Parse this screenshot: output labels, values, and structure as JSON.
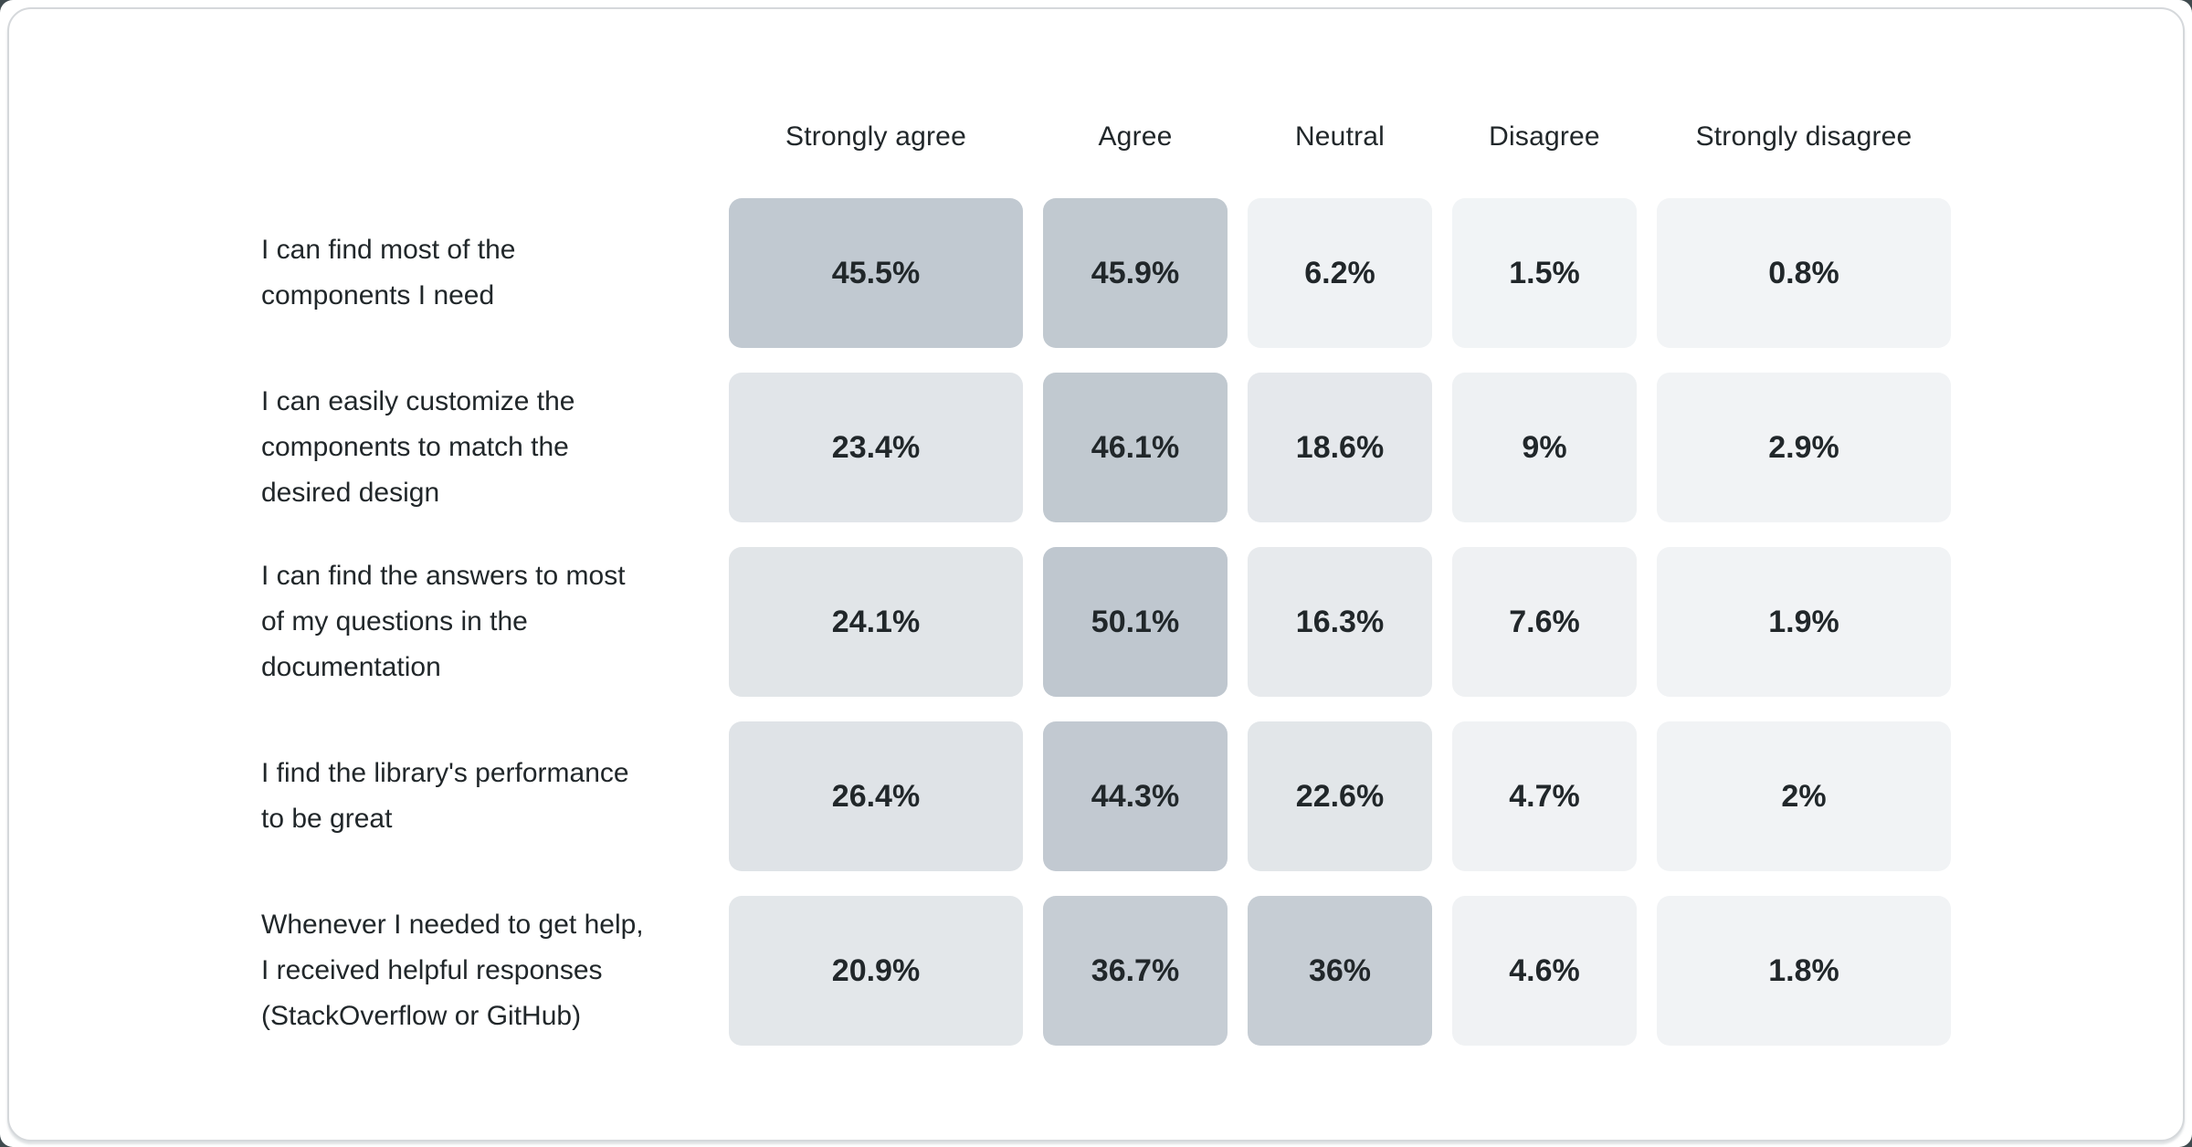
{
  "page": {
    "background": "#ffffff",
    "corner_background": "#3f4a4e",
    "card_border_color": "#d5d8db",
    "text_color": "#21272a"
  },
  "chart_data": {
    "type": "heatmap",
    "title": "",
    "legend_position": "none",
    "grid": false,
    "columns": [
      "Strongly agree",
      "Agree",
      "Neutral",
      "Disagree",
      "Strongly disagree"
    ],
    "rows": [
      {
        "label": "I can find most of the\ncomponents I need",
        "values": [
          45.5,
          45.9,
          6.2,
          1.5,
          0.8
        ],
        "value_labels": [
          "45.5%",
          "45.9%",
          "6.2%",
          "1.5%",
          "0.8%"
        ]
      },
      {
        "label": "I can easily customize the\ncomponents to match the\ndesired design",
        "values": [
          23.4,
          46.1,
          18.6,
          9,
          2.9
        ],
        "value_labels": [
          "23.4%",
          "46.1%",
          "18.6%",
          "9%",
          "2.9%"
        ]
      },
      {
        "label": "I can find the answers to most\nof my questions in the\ndocumentation",
        "values": [
          24.1,
          50.1,
          16.3,
          7.6,
          1.9
        ],
        "value_labels": [
          "24.1%",
          "50.1%",
          "16.3%",
          "7.6%",
          "1.9%"
        ]
      },
      {
        "label": "I find the library's performance\nto be great",
        "values": [
          26.4,
          44.3,
          22.6,
          4.7,
          2
        ],
        "value_labels": [
          "26.4%",
          "44.3%",
          "22.6%",
          "4.7%",
          "2%"
        ]
      },
      {
        "label": "Whenever I needed to get help,\nI received helpful responses\n(StackOverflow or GitHub)",
        "values": [
          20.9,
          36.7,
          36,
          4.6,
          1.8
        ],
        "value_labels": [
          "20.9%",
          "36.7%",
          "36%",
          "4.6%",
          "1.8%"
        ]
      }
    ],
    "color_scale": {
      "stops": [
        [
          0,
          "#f2f4f6"
        ],
        [
          9,
          "#eef1f3"
        ],
        [
          16.3,
          "#e7eaed"
        ],
        [
          26.4,
          "#dfe3e7"
        ],
        [
          36,
          "#c6cdd4"
        ],
        [
          50.1,
          "#bfc7cf"
        ]
      ]
    }
  }
}
